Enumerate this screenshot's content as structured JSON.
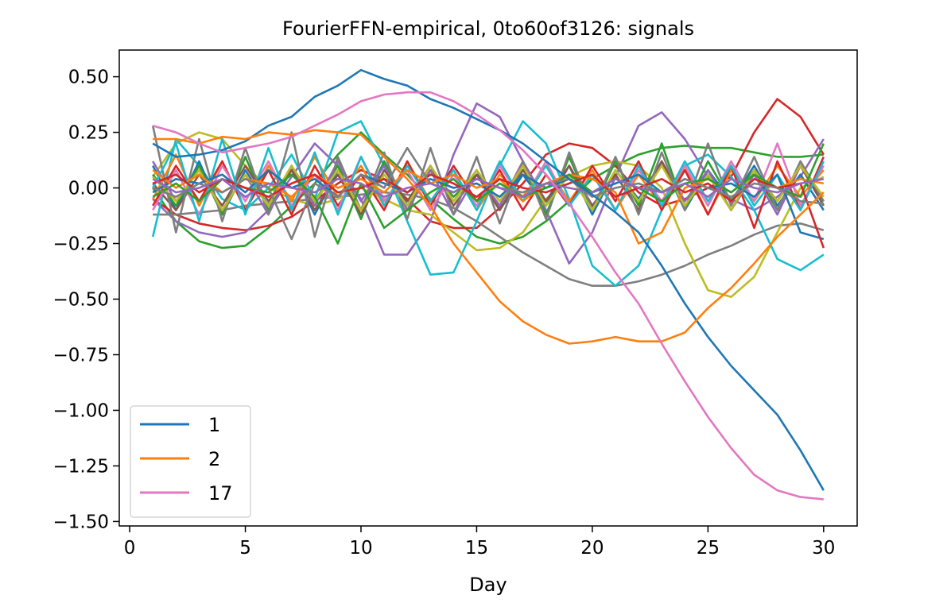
{
  "chart_data": {
    "type": "line",
    "title": "FourierFFN-empirical, 0to60of3126: signals",
    "xlabel": "Day",
    "ylabel": "",
    "xlim": [
      -0.45,
      31.45
    ],
    "ylim": [
      -1.52,
      0.62
    ],
    "xticks": [
      0,
      5,
      10,
      15,
      20,
      25,
      30
    ],
    "yticks": [
      0.5,
      0.25,
      0.0,
      -0.25,
      -0.5,
      -0.75,
      -1.0,
      -1.25,
      -1.5
    ],
    "ytick_labels": [
      "0.50",
      "0.25",
      "0.00",
      "−0.25",
      "−0.50",
      "−0.75",
      "−1.00",
      "−1.25",
      "−1.50"
    ],
    "grid": false,
    "legend_position": "lower-left",
    "x": [
      1,
      2,
      3,
      4,
      5,
      6,
      7,
      8,
      9,
      10,
      11,
      12,
      13,
      14,
      15,
      16,
      17,
      18,
      19,
      20,
      21,
      22,
      23,
      24,
      25,
      26,
      27,
      28,
      29,
      30
    ],
    "series": [
      {
        "name": "1",
        "color": "#1f77b4",
        "values": [
          0.2,
          0.14,
          0.15,
          0.17,
          0.21,
          0.28,
          0.32,
          0.41,
          0.46,
          0.53,
          0.49,
          0.46,
          0.4,
          0.36,
          0.31,
          0.26,
          0.2,
          0.12,
          0.04,
          -0.03,
          -0.11,
          -0.2,
          -0.35,
          -0.52,
          -0.67,
          -0.8,
          -0.91,
          -1.02,
          -1.18,
          -1.36
        ]
      },
      {
        "name": "2",
        "color": "#ff7f0e",
        "values": [
          0.22,
          0.22,
          0.2,
          0.23,
          0.22,
          0.25,
          0.24,
          0.26,
          0.25,
          0.24,
          0.14,
          0.04,
          -0.08,
          -0.25,
          -0.38,
          -0.51,
          -0.6,
          -0.66,
          -0.7,
          -0.69,
          -0.67,
          -0.69,
          -0.69,
          -0.65,
          -0.54,
          -0.45,
          -0.34,
          -0.22,
          -0.12,
          -0.02
        ]
      },
      {
        "name": "17",
        "color": "#e377c2",
        "values": [
          0.28,
          0.25,
          0.2,
          0.16,
          0.18,
          0.2,
          0.23,
          0.28,
          0.33,
          0.39,
          0.42,
          0.43,
          0.43,
          0.39,
          0.33,
          0.26,
          0.17,
          0.06,
          -0.07,
          -0.22,
          -0.38,
          -0.52,
          -0.7,
          -0.87,
          -1.03,
          -1.17,
          -1.29,
          -1.36,
          -1.39,
          -1.4
        ]
      },
      {
        "color": "#2ca02c",
        "values": [
          0.0,
          -0.15,
          -0.24,
          -0.27,
          -0.26,
          -0.18,
          -0.08,
          0.02,
          0.15,
          0.25,
          0.15,
          0.06,
          -0.05,
          -0.14,
          -0.22,
          -0.25,
          -0.22,
          -0.15,
          -0.06,
          0.04,
          0.1,
          0.15,
          0.18,
          0.19,
          0.18,
          0.18,
          0.16,
          0.14,
          0.14,
          0.15
        ]
      },
      {
        "color": "#d62728",
        "values": [
          -0.05,
          -0.12,
          -0.16,
          -0.18,
          -0.19,
          -0.17,
          -0.13,
          -0.06,
          0.02,
          0.08,
          0.04,
          -0.05,
          -0.15,
          -0.18,
          -0.18,
          -0.09,
          0.02,
          0.15,
          0.2,
          0.18,
          0.1,
          -0.02,
          -0.08,
          -0.05,
          0.0,
          0.05,
          0.25,
          0.4,
          0.32,
          0.15
        ]
      },
      {
        "color": "#9467bd",
        "values": [
          -0.05,
          -0.15,
          -0.2,
          -0.22,
          -0.2,
          -0.1,
          0.05,
          0.2,
          0.1,
          -0.05,
          -0.3,
          -0.3,
          -0.15,
          0.15,
          0.38,
          0.32,
          0.12,
          -0.1,
          -0.34,
          -0.2,
          0.05,
          0.28,
          0.34,
          0.22,
          0.05,
          -0.05,
          -0.1,
          -0.04,
          0.05,
          0.22
        ]
      },
      {
        "color": "#7f7f7f",
        "values": [
          -0.12,
          -0.12,
          -0.11,
          -0.1,
          -0.08,
          -0.07,
          -0.06,
          -0.05,
          -0.04,
          -0.03,
          -0.02,
          -0.03,
          -0.05,
          -0.09,
          -0.15,
          -0.22,
          -0.29,
          -0.35,
          -0.41,
          -0.44,
          -0.44,
          -0.42,
          -0.39,
          -0.35,
          -0.3,
          -0.26,
          -0.21,
          -0.17,
          -0.16,
          -0.19
        ]
      },
      {
        "color": "#bcbd22",
        "values": [
          0.05,
          0.2,
          0.25,
          0.22,
          0.1,
          0.0,
          -0.05,
          -0.08,
          -0.05,
          0.0,
          -0.05,
          -0.1,
          -0.12,
          -0.2,
          -0.28,
          -0.27,
          -0.2,
          -0.05,
          0.05,
          0.1,
          0.12,
          0.1,
          0.0,
          -0.25,
          -0.46,
          -0.49,
          -0.4,
          -0.2,
          0.0,
          0.05
        ]
      },
      {
        "color": "#17becf",
        "values": [
          -0.22,
          0.22,
          0.1,
          -0.05,
          -0.1,
          0.0,
          0.15,
          -0.05,
          0.25,
          0.3,
          0.1,
          -0.15,
          -0.39,
          -0.38,
          -0.15,
          0.1,
          0.3,
          0.2,
          -0.05,
          -0.35,
          -0.44,
          -0.35,
          -0.1,
          0.1,
          0.15,
          0.05,
          -0.1,
          -0.32,
          -0.37,
          -0.3
        ]
      },
      {
        "color": "#1f77b4",
        "values": [
          0.1,
          -0.1,
          0.12,
          -0.12,
          0.08,
          -0.08,
          0.1,
          -0.12,
          0.08,
          -0.1,
          0.12,
          -0.08,
          0.1,
          -0.06,
          0.08,
          -0.1,
          0.06,
          -0.08,
          0.1,
          -0.12,
          0.08,
          -0.05,
          0.12,
          -0.1,
          0.08,
          -0.06,
          0.1,
          -0.08,
          0.06,
          -0.1
        ]
      },
      {
        "color": "#ff7f0e",
        "values": [
          -0.05,
          0.15,
          -0.08,
          0.12,
          -0.1,
          0.1,
          -0.06,
          0.14,
          -0.04,
          0.1,
          -0.08,
          0.12,
          -0.06,
          0.08,
          -0.1,
          0.06,
          -0.04,
          0.1,
          -0.06,
          0.08,
          -0.1,
          0.06,
          -0.08,
          0.1,
          -0.12,
          0.08,
          -0.06,
          0.1,
          -0.04,
          0.08
        ]
      },
      {
        "color": "#2ca02c",
        "values": [
          0.06,
          -0.08,
          0.1,
          -0.12,
          0.14,
          -0.1,
          0.08,
          -0.06,
          0.1,
          -0.14,
          0.12,
          -0.1,
          0.08,
          -0.04,
          0.06,
          -0.08,
          0.1,
          -0.12,
          0.14,
          -0.1,
          0.12,
          -0.08,
          0.2,
          -0.1,
          0.12,
          -0.06,
          0.08,
          -0.1,
          0.12,
          -0.08
        ]
      },
      {
        "color": "#d62728",
        "values": [
          -0.08,
          0.1,
          -0.06,
          0.12,
          -0.1,
          0.08,
          -0.12,
          0.1,
          -0.08,
          0.06,
          -0.1,
          0.12,
          -0.08,
          0.1,
          -0.06,
          0.08,
          -0.1,
          0.06,
          -0.08,
          0.1,
          -0.06,
          0.12,
          -0.1,
          0.08,
          -0.12,
          0.1,
          -0.18,
          0.12,
          -0.1,
          0.14
        ]
      },
      {
        "color": "#9467bd",
        "values": [
          0.12,
          -0.06,
          0.08,
          -0.1,
          0.06,
          -0.12,
          0.1,
          -0.08,
          0.12,
          -0.06,
          0.1,
          -0.1,
          0.08,
          -0.12,
          0.06,
          -0.08,
          0.12,
          -0.06,
          0.1,
          -0.08,
          0.06,
          -0.1,
          0.12,
          -0.06,
          0.08,
          -0.1,
          0.06,
          -0.12,
          0.1,
          -0.06
        ]
      },
      {
        "color": "#8c564b",
        "values": [
          0.02,
          -0.1,
          0.06,
          -0.08,
          0.1,
          -0.06,
          0.08,
          -0.1,
          0.06,
          -0.12,
          0.08,
          -0.06,
          0.1,
          -0.08,
          0.06,
          -0.1,
          0.08,
          -0.06,
          0.1,
          -0.08,
          0.06,
          -0.1,
          0.12,
          -0.08,
          0.06,
          -0.1,
          0.08,
          -0.06,
          0.1,
          -0.08
        ]
      },
      {
        "color": "#e377c2",
        "values": [
          -0.1,
          0.08,
          -0.12,
          0.1,
          -0.06,
          0.12,
          -0.08,
          0.06,
          -0.1,
          0.14,
          -0.06,
          0.08,
          -0.1,
          0.06,
          -0.08,
          0.1,
          -0.06,
          0.12,
          -0.08,
          0.06,
          -0.1,
          0.08,
          -0.06,
          0.1,
          -0.08,
          0.12,
          -0.06,
          0.2,
          -0.08,
          0.1
        ]
      },
      {
        "color": "#7f7f7f",
        "values": [
          0.28,
          -0.2,
          0.22,
          -0.15,
          0.18,
          -0.12,
          0.25,
          -0.22,
          0.14,
          -0.1,
          0.16,
          -0.14,
          0.18,
          -0.12,
          0.14,
          -0.16,
          0.12,
          -0.14,
          0.16,
          -0.1,
          0.14,
          -0.12,
          0.16,
          -0.1,
          0.2,
          -0.08,
          0.14,
          -0.1,
          0.12,
          -0.06
        ]
      },
      {
        "color": "#bcbd22",
        "values": [
          0.05,
          -0.06,
          0.08,
          -0.1,
          0.06,
          -0.08,
          0.1,
          -0.06,
          0.08,
          -0.1,
          0.06,
          -0.08,
          0.1,
          -0.06,
          0.08,
          -0.06,
          0.1,
          -0.08,
          0.06,
          -0.1,
          0.08,
          -0.06,
          0.1,
          -0.08,
          0.06,
          -0.1,
          0.08,
          -0.06,
          0.1,
          -0.04
        ]
      },
      {
        "color": "#17becf",
        "values": [
          0.0,
          0.2,
          -0.15,
          0.22,
          -0.12,
          0.18,
          -0.1,
          0.16,
          -0.12,
          0.14,
          -0.08,
          0.1,
          -0.06,
          0.08,
          -0.1,
          0.12,
          -0.06,
          0.1,
          -0.08,
          0.06,
          -0.1,
          0.1,
          -0.08,
          0.12,
          -0.06,
          0.1,
          -0.08,
          0.06,
          -0.1,
          0.12
        ]
      },
      {
        "color": "#1f77b4",
        "values": [
          -0.02,
          0.04,
          0.02,
          0.06,
          -0.02,
          0.08,
          0.0,
          0.04,
          -0.04,
          0.06,
          0.02,
          -0.02,
          0.04,
          0.0,
          0.02,
          -0.04,
          0.06,
          0.0,
          0.04,
          -0.02,
          0.02,
          0.06,
          -0.02,
          0.04,
          0.0,
          0.02,
          -0.04,
          0.06,
          -0.2,
          -0.23
        ]
      },
      {
        "color": "#ff7f0e",
        "values": [
          0.08,
          0.0,
          0.06,
          -0.02,
          0.04,
          0.02,
          -0.04,
          0.06,
          0.0,
          0.04,
          -0.02,
          0.08,
          0.02,
          0.06,
          0.0,
          0.04,
          -0.06,
          0.02,
          0.06,
          0.04,
          -0.02,
          -0.25,
          -0.2,
          0.0,
          0.04,
          -0.02,
          0.06,
          0.0,
          0.04,
          0.02
        ]
      },
      {
        "color": "#2ca02c",
        "values": [
          -0.04,
          0.02,
          -0.06,
          0.04,
          0.0,
          -0.02,
          0.06,
          -0.04,
          -0.25,
          0.02,
          -0.18,
          -0.1,
          -0.02,
          0.04,
          -0.06,
          0.02,
          -0.04,
          0.0,
          0.06,
          -0.02,
          0.04,
          0.0,
          -0.06,
          0.02,
          0.04,
          -0.02,
          0.06,
          0.0,
          -0.04,
          0.2
        ]
      },
      {
        "color": "#d62728",
        "values": [
          0.02,
          0.06,
          -0.02,
          0.04,
          0.0,
          -0.04,
          0.02,
          0.06,
          -0.02,
          0.0,
          0.04,
          -0.02,
          0.06,
          0.02,
          -0.04,
          0.04,
          0.0,
          -0.02,
          0.02,
          0.06,
          -0.04,
          0.0,
          0.04,
          -0.02,
          0.02,
          -0.06,
          0.04,
          0.0,
          0.02,
          -0.27
        ]
      },
      {
        "color": "#7f7f7f",
        "values": [
          0.0,
          -0.04,
          0.02,
          -0.02,
          0.04,
          0.0,
          -0.23,
          0.02,
          -0.04,
          0.06,
          0.0,
          0.18,
          0.02,
          -0.02,
          0.04,
          0.0,
          -0.02,
          0.02,
          0.04,
          -0.04,
          0.0,
          0.02,
          -0.02,
          0.04,
          0.0,
          -0.04,
          0.02,
          0.0,
          -0.06,
          -0.07
        ]
      },
      {
        "color": "#9467bd",
        "values": [
          0.04,
          -0.02,
          0.0,
          0.04,
          -0.04,
          0.02,
          0.0,
          -0.02,
          0.04,
          0.02,
          -0.04,
          0.0,
          0.02,
          -0.02,
          0.04,
          0.0,
          -0.04,
          0.02,
          0.0,
          -0.02,
          0.04,
          0.0,
          -0.02,
          0.02,
          -0.04,
          0.04,
          0.0,
          -0.02,
          0.02,
          0.04
        ]
      }
    ]
  }
}
